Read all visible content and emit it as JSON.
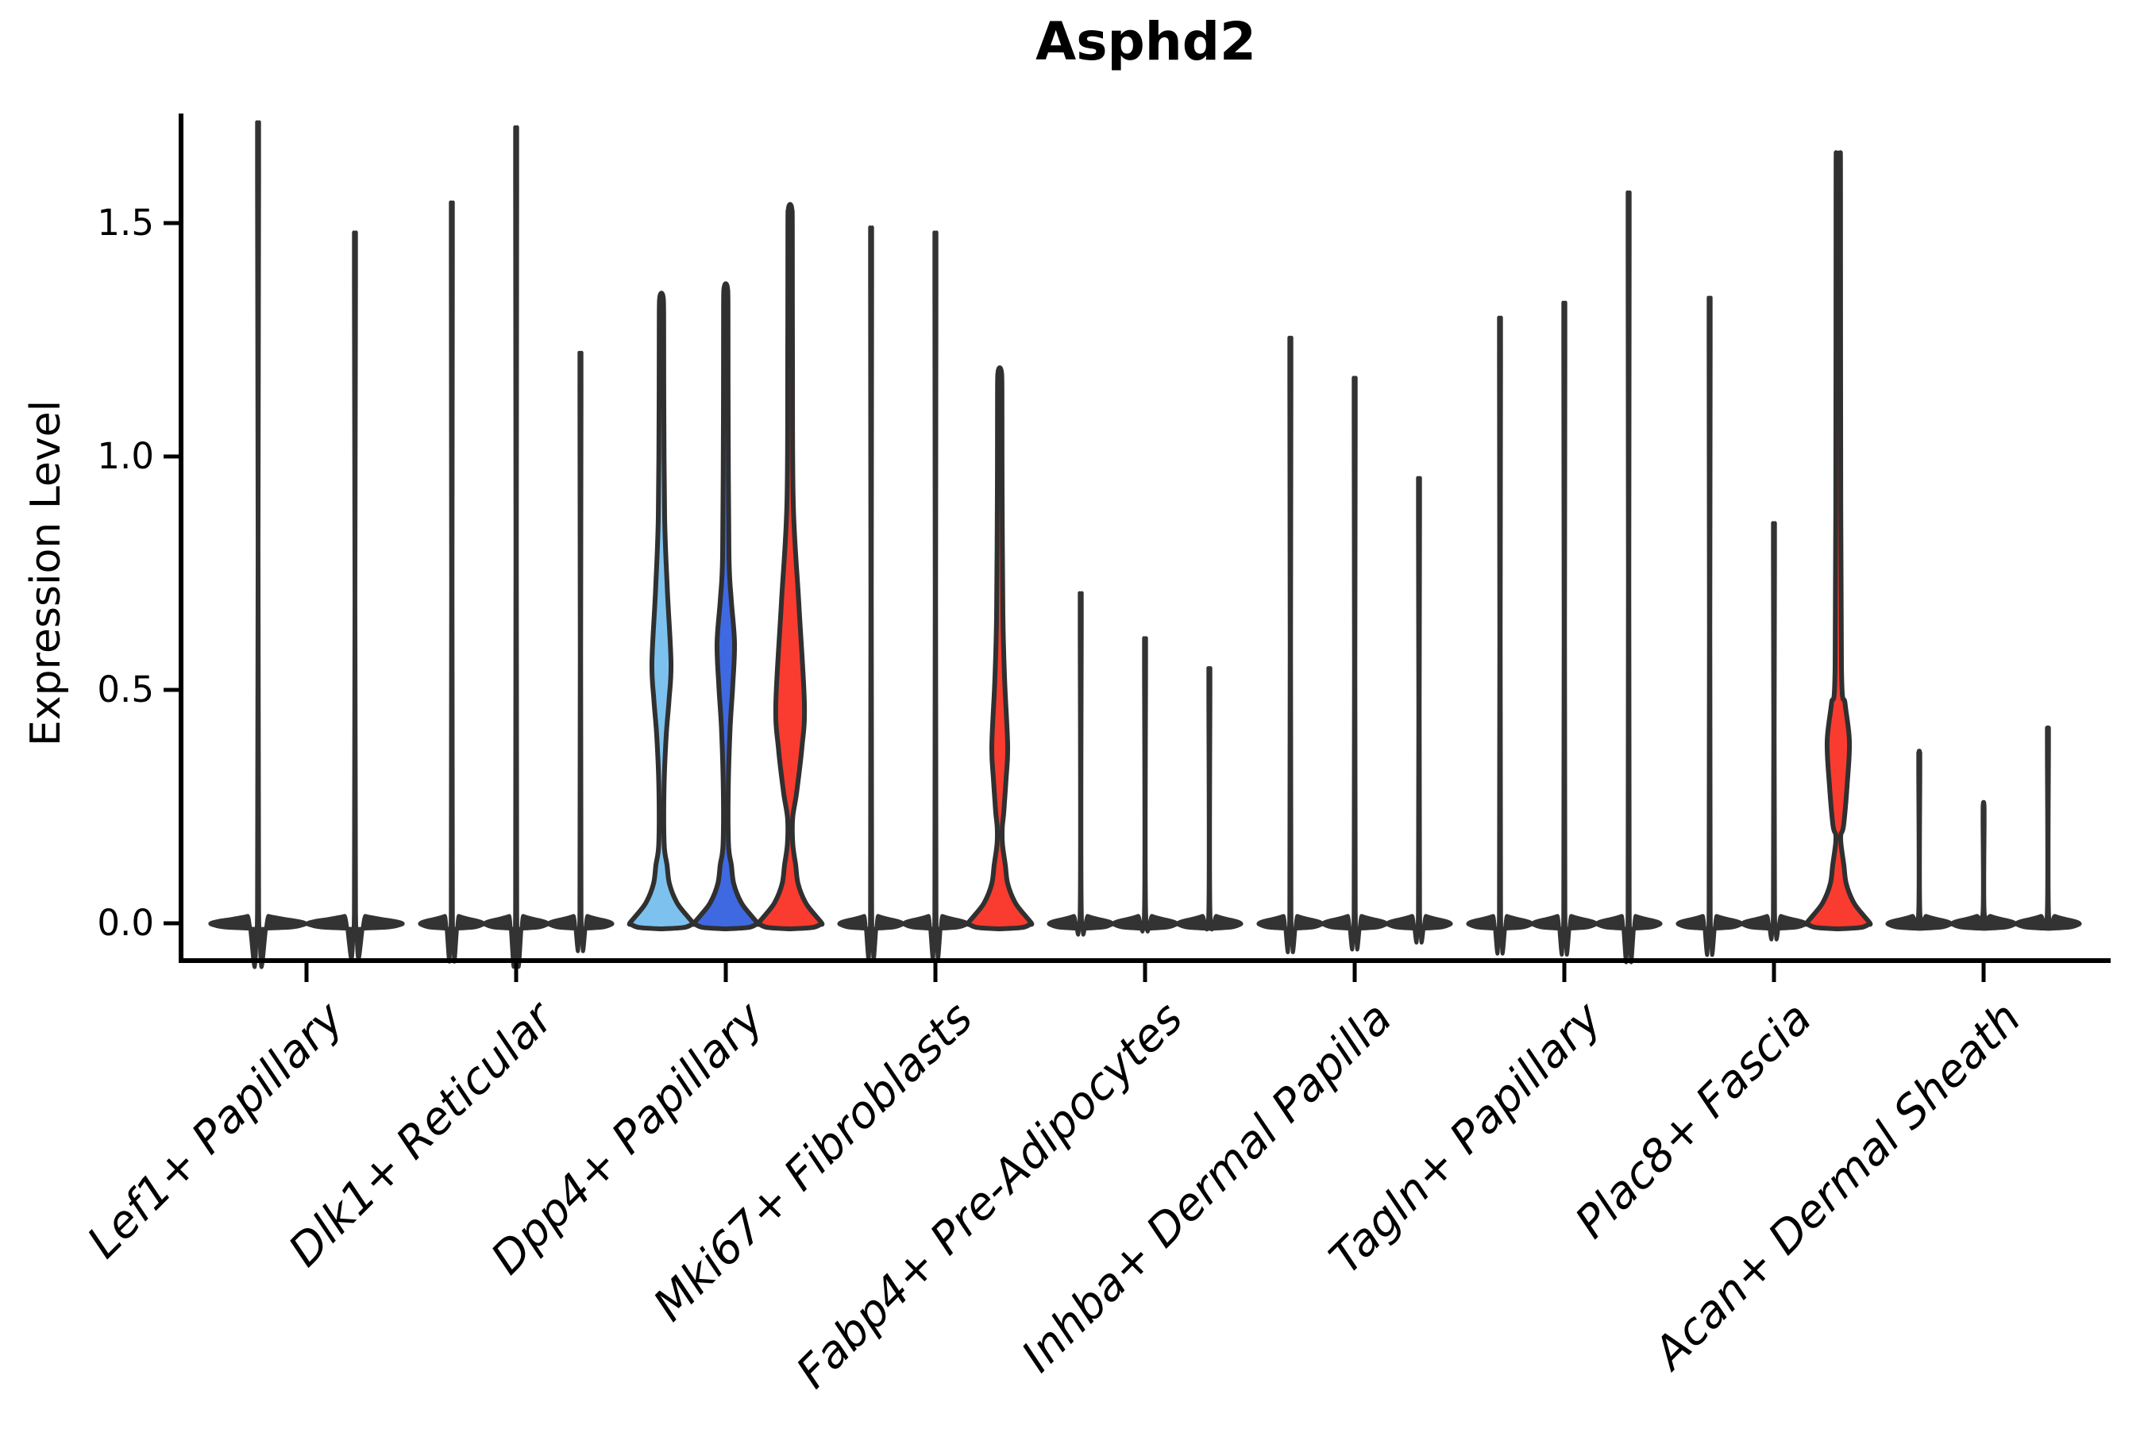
{
  "title": "Asphd2",
  "y_axis": {
    "label": "Expression Level",
    "tick_labels": [
      "0.0",
      "0.5",
      "1.0",
      "1.5"
    ],
    "tick_values": [
      0.0,
      0.5,
      1.0,
      1.5
    ]
  },
  "colors": {
    "light_blue": "#7dc2ee",
    "dark_blue": "#3f69e1",
    "red": "#f93c2f",
    "thin_violin": "#333333",
    "outline": "#303030",
    "axis": "#000000"
  },
  "chart_data": {
    "type": "violin",
    "title": "Asphd2",
    "xlabel": "",
    "ylabel": "Expression Level",
    "ylim": [
      -0.08,
      1.73
    ],
    "yticks": [
      0.0,
      0.5,
      1.0,
      1.5
    ],
    "grid": false,
    "legend": null,
    "description": "Split violin plot of Asphd2 expression per fibroblast cluster; most violins collapse to a spike at 0 with a flat base, colored violins show visible density bulges.",
    "groups": [
      {
        "label": "Lef1+ Papillary",
        "violins": [
          {
            "max": 1.63
          },
          {
            "max": 1.41
          }
        ]
      },
      {
        "label": "Dlk1+ Reticular",
        "violins": [
          {
            "max": 1.47
          },
          {
            "max": 1.62
          },
          {
            "max": 1.17
          }
        ]
      },
      {
        "label": "Dpp4+ Papillary",
        "violins": [
          {
            "max": 1.35,
            "fill": "light_blue",
            "bulge": {
              "lo": 0.4,
              "peak": 0.56,
              "hi": 0.87,
              "half": 9
            }
          },
          {
            "max": 1.37,
            "fill": "dark_blue",
            "bulge": {
              "lo": 0.42,
              "peak": 0.6,
              "hi": 0.79,
              "half": 8
            }
          },
          {
            "max": 1.54,
            "fill": "red",
            "bulge": {
              "lo": 0.28,
              "peak": 0.47,
              "hi": 0.9,
              "half": 15
            }
          }
        ]
      },
      {
        "label": "Mki67+ Fibroblasts",
        "violins": [
          {
            "max": 1.42
          },
          {
            "max": 1.41
          },
          {
            "max": 1.19,
            "fill": "red",
            "bulge": {
              "lo": 0.24,
              "peak": 0.38,
              "hi": 0.66,
              "half": 7
            }
          }
        ]
      },
      {
        "label": "Fabp4+ Pre-Adipocytes",
        "violins": [
          {
            "max": 0.69
          },
          {
            "max": 0.6
          },
          {
            "max": 0.54
          }
        ]
      },
      {
        "label": "Inhba+ Dermal Papilla",
        "violins": [
          {
            "max": 1.2
          },
          {
            "max": 1.12
          },
          {
            "max": 0.92
          }
        ]
      },
      {
        "label": "Tagln+ Papillary",
        "violins": [
          {
            "max": 1.24
          },
          {
            "max": 1.27
          },
          {
            "max": 1.49
          }
        ]
      },
      {
        "label": "Plac8+ Fascia",
        "violins": [
          {
            "max": 1.28
          },
          {
            "max": 0.83
          },
          {
            "max": 1.65,
            "fill": "red",
            "bulge": {
              "lo": 0.21,
              "peak": 0.39,
              "hi": 0.55,
              "half": 11
            }
          }
        ]
      },
      {
        "label": "Acan+ Dermal Sheath",
        "violins": [
          {
            "max": 0.37
          },
          {
            "max": 0.26
          },
          {
            "max": 0.42
          }
        ]
      }
    ]
  }
}
